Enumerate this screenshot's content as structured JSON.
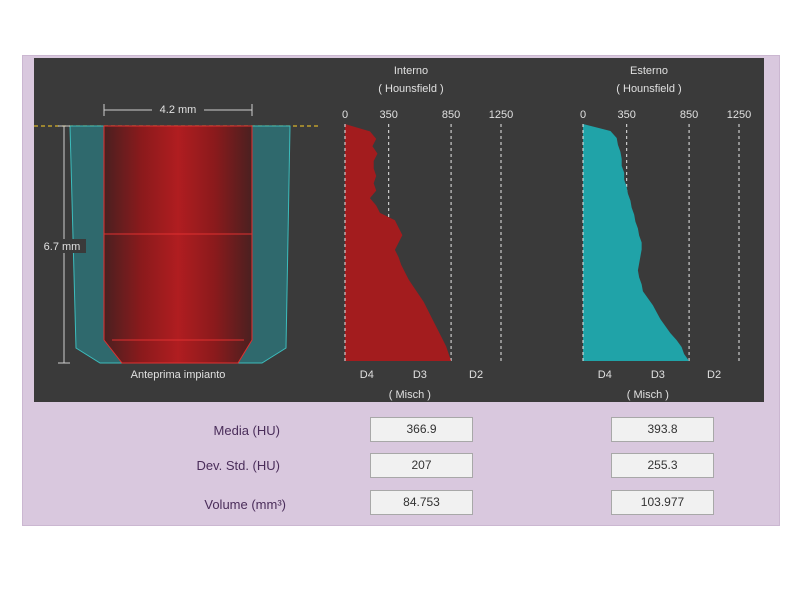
{
  "implant": {
    "width_label": "4.2 mm",
    "height_label": "6.7 mm",
    "caption": "Anteprima impianto"
  },
  "chart_data": [
    {
      "type": "area",
      "title": "Interno",
      "subtitle": "( Hounsfield )",
      "x_ticks": [
        "0",
        "350",
        "850",
        "1250"
      ],
      "x_tick_values": [
        0,
        350,
        850,
        1250
      ],
      "bottom_labels": [
        "D4",
        "D3",
        "D2"
      ],
      "bottom_caption": "( Misch )",
      "color": "#a31c1e",
      "profile_hu": [
        0,
        200,
        250,
        220,
        260,
        230,
        230,
        250,
        230,
        250,
        200,
        250,
        280,
        400,
        430,
        460,
        430,
        400,
        430,
        450,
        480,
        510,
        550,
        590,
        630,
        660,
        690,
        720,
        750,
        780,
        810,
        830,
        850
      ],
      "grid": "dashed at 350, 850, 1250"
    },
    {
      "type": "area",
      "title": "Esterno",
      "subtitle": "( Hounsfield )",
      "x_ticks": [
        "0",
        "350",
        "850",
        "1250"
      ],
      "x_tick_values": [
        0,
        350,
        850,
        1250
      ],
      "bottom_labels": [
        "D4",
        "D3",
        "D2"
      ],
      "bottom_caption": "( Misch )",
      "color": "#20a3a8",
      "profile_hu": [
        0,
        220,
        270,
        280,
        300,
        310,
        310,
        330,
        330,
        350,
        360,
        380,
        390,
        410,
        420,
        440,
        450,
        470,
        470,
        460,
        450,
        440,
        450,
        470,
        480,
        520,
        560,
        590,
        620,
        660,
        700,
        750,
        790,
        810,
        850
      ],
      "grid": "dashed at 350, 850, 1250"
    }
  ],
  "stats": {
    "rows": [
      {
        "label": "Media (HU)",
        "interno": "366.9",
        "esterno": "393.8"
      },
      {
        "label": "Dev. Std. (HU)",
        "interno": "207",
        "esterno": "255.3"
      },
      {
        "label": "Volume (mm³)",
        "interno": "84.753",
        "esterno": "103.977"
      }
    ]
  }
}
